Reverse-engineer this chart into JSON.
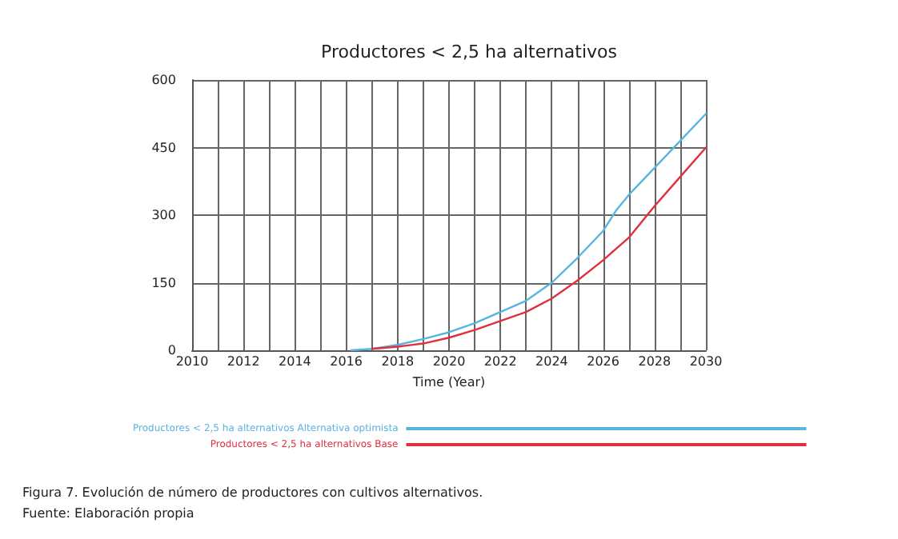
{
  "chart_data": {
    "type": "line",
    "title": "Productores < 2,5 ha alternativos",
    "xlabel": "Time (Year)",
    "xlim": [
      2010,
      2030
    ],
    "xticks": [
      2010,
      {
        "value": 2011,
        "label": null
      },
      2012,
      {
        "value": 2013,
        "label": null
      },
      2014,
      {
        "value": 2015,
        "label": null
      },
      2016,
      {
        "value": 2017,
        "label": null
      },
      2018,
      {
        "value": 2019,
        "label": null
      },
      2020,
      {
        "value": 2021,
        "label": null
      },
      2022,
      {
        "value": 2023,
        "label": null
      },
      2024,
      {
        "value": 2025,
        "label": null
      },
      2026,
      {
        "value": 2027,
        "label": null
      },
      2028,
      {
        "value": 2029,
        "label": null
      },
      2030
    ],
    "ylim": [
      0,
      600
    ],
    "yticks": [
      0,
      150,
      300,
      450,
      600
    ],
    "series": [
      {
        "name": "Productores < 2,5 ha alternativos Alternativa optimista",
        "color": "#5ab4e0",
        "x": [
          2016.2,
          2017,
          2018,
          2019,
          2020,
          2021,
          2022,
          2023,
          2024,
          2025,
          2026,
          2026.5,
          2027,
          2028,
          2029,
          2030
        ],
        "values": [
          0,
          3,
          12,
          25,
          40,
          60,
          85,
          110,
          150,
          205,
          265,
          310,
          345,
          405,
          465,
          525
        ]
      },
      {
        "name": "Productores < 2,5 ha alternativos Base",
        "color": "#e03040",
        "x": [
          2017,
          2018,
          2019,
          2020,
          2021,
          2022,
          2023,
          2024,
          2025,
          2026,
          2027,
          2028,
          2029,
          2030
        ],
        "values": [
          3,
          8,
          15,
          28,
          45,
          65,
          85,
          115,
          155,
          200,
          250,
          320,
          385,
          450
        ]
      }
    ],
    "grid": true,
    "legend": "bottom",
    "marker": "none",
    "line_style": "solid",
    "annotations": [
      "Figura 7. Evolución de número de productores con cultivos alternativos.",
      "Fuente: Elaboración propia"
    ]
  }
}
